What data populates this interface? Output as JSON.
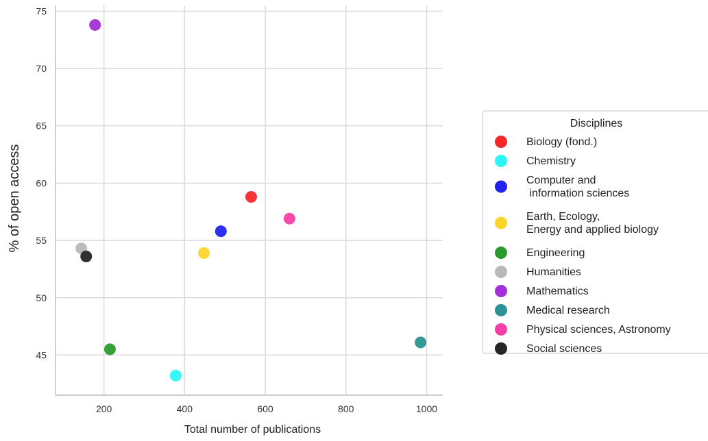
{
  "chart_data": {
    "type": "scatter",
    "title": "",
    "xlabel": "Total number of publications",
    "ylabel": "% of open access",
    "xlim": [
      80,
      1040
    ],
    "ylim": [
      41.5,
      75.5
    ],
    "xticks": [
      200,
      400,
      600,
      800,
      1000
    ],
    "yticks": [
      45,
      50,
      55,
      60,
      65,
      70,
      75
    ],
    "grid": true,
    "legend": {
      "title": "Disciplines",
      "placement": "right"
    },
    "series": [
      {
        "name": "Biology (fond.)",
        "color": "#f5282a",
        "x": [
          565
        ],
        "y": [
          58.8
        ]
      },
      {
        "name": "Chemistry",
        "color": "#2df5f5",
        "x": [
          378
        ],
        "y": [
          43.2
        ]
      },
      {
        "name": "Computer and\n information sciences",
        "color": "#2323f0",
        "x": [
          490
        ],
        "y": [
          55.8
        ]
      },
      {
        "name": "Earth, Ecology,\nEnergy and applied biology",
        "color": "#fcd52a",
        "x": [
          448
        ],
        "y": [
          53.9
        ]
      },
      {
        "name": "Engineering",
        "color": "#2c9a2c",
        "x": [
          215
        ],
        "y": [
          45.5
        ]
      },
      {
        "name": "Humanities",
        "color": "#b8b8b8",
        "x": [
          144
        ],
        "y": [
          54.3
        ]
      },
      {
        "name": "Mathematics",
        "color": "#a32fd6",
        "x": [
          178
        ],
        "y": [
          73.8
        ]
      },
      {
        "name": "Medical research",
        "color": "#2a9395",
        "x": [
          985
        ],
        "y": [
          46.1
        ]
      },
      {
        "name": "Physical sciences, Astronomy",
        "color": "#f43fa8",
        "x": [
          660
        ],
        "y": [
          56.9
        ]
      },
      {
        "name": "Social sciences",
        "color": "#262626",
        "x": [
          156
        ],
        "y": [
          53.6
        ]
      }
    ]
  }
}
